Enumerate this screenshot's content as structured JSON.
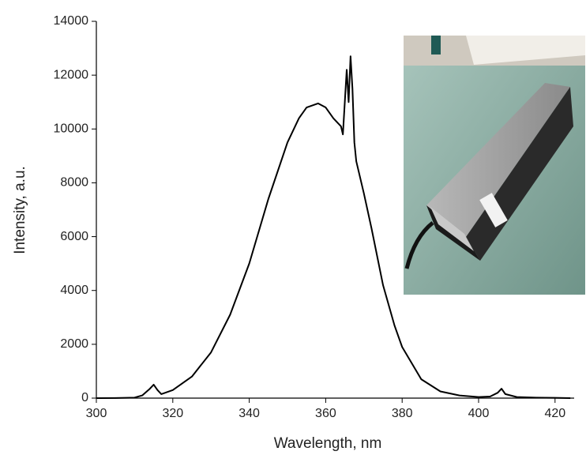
{
  "chart_data": {
    "type": "line",
    "x_label": "Wavelength, nm",
    "y_label": "Intensity, a.u.",
    "x": [
      300,
      305,
      310,
      312,
      314,
      315,
      316,
      317,
      320,
      325,
      330,
      335,
      340,
      345,
      350,
      353,
      355,
      358,
      360,
      362,
      364,
      364.5,
      365,
      365.5,
      366,
      366.5,
      367,
      367.5,
      368,
      370,
      372,
      375,
      378,
      380,
      385,
      390,
      395,
      400,
      403,
      405,
      406,
      407,
      410,
      415,
      420,
      424
    ],
    "values": [
      0,
      5,
      20,
      100,
      350,
      500,
      300,
      150,
      300,
      800,
      1700,
      3100,
      5000,
      7400,
      9500,
      10400,
      10800,
      10950,
      10800,
      10400,
      10100,
      9800,
      11000,
      12200,
      11000,
      12700,
      11500,
      9500,
      8800,
      7600,
      6300,
      4200,
      2700,
      1900,
      700,
      250,
      100,
      40,
      60,
      200,
      350,
      150,
      40,
      20,
      10,
      0
    ],
    "color": "#000000",
    "xlim": [
      300,
      425
    ],
    "ylim": [
      0,
      14000
    ],
    "xticks": [
      300,
      320,
      340,
      360,
      380,
      400,
      420
    ],
    "yticks": [
      0,
      2000,
      4000,
      6000,
      8000,
      10000,
      12000,
      14000
    ]
  }
}
